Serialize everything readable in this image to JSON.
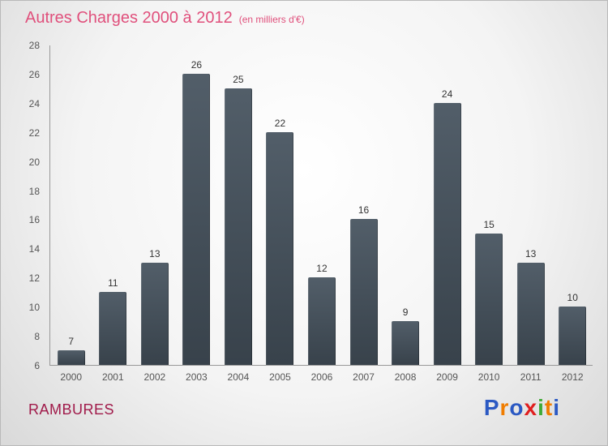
{
  "chart": {
    "title": "Autres Charges 2000 à 2012",
    "subtitle": "(en milliers d'€)",
    "title_color": "#e0507c"
  },
  "chart_data": {
    "type": "bar",
    "title": "Autres Charges 2000 à 2012",
    "subtitle": "(en milliers d'€)",
    "categories": [
      "2000",
      "2001",
      "2002",
      "2003",
      "2004",
      "2005",
      "2006",
      "2007",
      "2008",
      "2009",
      "2010",
      "2011",
      "2012"
    ],
    "values": [
      7,
      11,
      13,
      26,
      25,
      22,
      12,
      16,
      9,
      24,
      15,
      13,
      10
    ],
    "xlabel": "",
    "ylabel": "",
    "ylim": [
      6,
      28
    ],
    "ytick_step": 2,
    "grid": false,
    "legend": false,
    "bar_color_top": "#525e69",
    "bar_color_bottom": "#38424b",
    "value_label_color": "#333333",
    "axis_label_color": "#555555"
  },
  "footer": {
    "brand": "RAMBURES",
    "brand_color": "#a01a4a",
    "logo_letters": [
      {
        "char": "P",
        "color": "#2b59c3"
      },
      {
        "char": "r",
        "color": "#f07d00"
      },
      {
        "char": "o",
        "color": "#2b59c3"
      },
      {
        "char": "x",
        "color": "#e01f1f"
      },
      {
        "char": "i",
        "color": "#3faa36"
      },
      {
        "char": "t",
        "color": "#f07d00"
      },
      {
        "char": "i",
        "color": "#2b59c3"
      }
    ]
  }
}
